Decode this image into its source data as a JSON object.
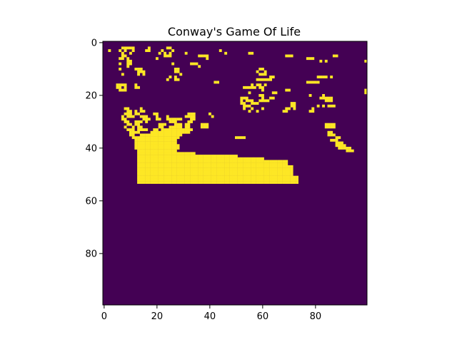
{
  "chart_data": {
    "type": "heatmap",
    "title": "Conway's Game Of Life",
    "xlabel": "",
    "ylabel": "",
    "grid": false,
    "colormap": "viridis",
    "colors": {
      "dead": "#440154",
      "alive": "#fde725"
    },
    "rows": 100,
    "cols": 100,
    "xlim": [
      -0.5,
      99.5
    ],
    "ylim": [
      99.5,
      -0.5
    ],
    "x_ticks": [
      0,
      20,
      40,
      60,
      80
    ],
    "y_ticks": [
      0,
      20,
      40,
      60,
      80
    ],
    "alive_cells_by_row": {
      "2": [
        7,
        8,
        9,
        10,
        11,
        17,
        24,
        25
      ],
      "3": [
        2,
        6,
        8,
        11,
        16,
        17,
        22,
        26,
        44
      ],
      "4": [
        7,
        10,
        21,
        23,
        25,
        31,
        46,
        55,
        56
      ],
      "5": [
        7,
        8,
        23,
        24,
        25,
        36,
        37,
        37,
        38,
        39,
        69,
        70,
        71,
        87,
        88
      ],
      "6": [
        6,
        7,
        9,
        20,
        39,
        77,
        78,
        79
      ],
      "7": [
        9,
        10,
        82,
        84,
        99
      ],
      "8": [
        6,
        9,
        10,
        26,
        33,
        34,
        34,
        35
      ],
      "9": [
        9,
        36,
        36
      ],
      "10": [
        6,
        12,
        13,
        14,
        27,
        28,
        59,
        60
      ],
      "11": [
        13,
        14,
        15,
        27,
        28,
        58,
        61
      ],
      "12": [
        7,
        13,
        15,
        29,
        59,
        60,
        61
      ],
      "13": [
        25,
        27,
        63,
        64,
        81,
        82,
        83,
        84,
        86
      ],
      "14": [
        24,
        27,
        28,
        58,
        59,
        60,
        61,
        62,
        63
      ],
      "15": [
        42,
        43,
        77,
        78,
        79,
        80,
        81
      ],
      "16": [
        5,
        6,
        7,
        8,
        12,
        56,
        58,
        59,
        61
      ],
      "17": [
        5,
        6,
        8,
        12,
        13,
        53,
        54,
        55,
        56,
        57,
        59,
        60
      ],
      "18": [
        6,
        7,
        8,
        60,
        69,
        70,
        99
      ],
      "19": [
        55,
        64,
        65,
        99
      ],
      "20": [
        59,
        60,
        78,
        83
      ],
      "21": [
        52,
        53,
        54,
        60,
        63,
        64,
        82,
        83,
        84,
        85,
        86
      ],
      "22": [
        52,
        54,
        55,
        56,
        59,
        60,
        61,
        62,
        84,
        85,
        86
      ],
      "23": [
        52,
        53,
        56,
        57,
        58,
        71,
        72
      ],
      "24": [
        53,
        54,
        55,
        71,
        72,
        81,
        83,
        85,
        86,
        87
      ],
      "25": [
        8,
        9,
        14,
        53,
        56,
        60,
        69,
        70,
        72,
        79
      ],
      "26": [
        9,
        10,
        12,
        14,
        15,
        55,
        58,
        68,
        69,
        78,
        79
      ],
      "27": [
        8,
        9,
        10,
        12,
        13,
        19,
        20,
        32,
        33,
        34,
        34,
        40
      ],
      "28": [
        7,
        9,
        10,
        11,
        14,
        15,
        16,
        20,
        24,
        31,
        32,
        33,
        34,
        41
      ],
      "29": [
        7,
        8,
        15,
        16,
        17,
        20,
        21,
        24,
        25,
        26,
        27,
        28,
        29,
        33,
        34
      ],
      "30": [
        8,
        9,
        12,
        13,
        14,
        16,
        25,
        26,
        27,
        32,
        33
      ],
      "31": [
        9,
        10,
        12,
        13,
        21,
        22,
        23,
        27,
        28,
        29,
        31,
        32,
        37,
        38,
        39,
        84,
        85,
        86,
        87
      ],
      "32": [
        8,
        11,
        13,
        14,
        21,
        22,
        25,
        26,
        27,
        28,
        29,
        31,
        32,
        37,
        38,
        39,
        84,
        85,
        86,
        87
      ],
      "33": [
        9,
        10,
        11,
        13,
        14,
        15,
        16,
        19,
        20,
        22,
        23,
        24,
        25,
        26,
        27,
        28,
        29,
        30,
        31,
        32,
        33
      ],
      "34": [
        10,
        11,
        12,
        13,
        18,
        19,
        20,
        21,
        22,
        23,
        24,
        25,
        26,
        27,
        28,
        29,
        30,
        31,
        32,
        85,
        86
      ],
      "35": [
        10,
        11,
        14,
        15,
        16,
        17,
        18,
        19,
        20,
        21,
        22,
        23,
        24,
        25,
        26,
        27,
        28,
        29,
        85,
        86,
        87
      ],
      "36": [
        11,
        12,
        13,
        14,
        15,
        16,
        17,
        18,
        19,
        20,
        21,
        22,
        23,
        24,
        25,
        26,
        27,
        28,
        50,
        51,
        52,
        53,
        88,
        89
      ],
      "37": [
        12,
        13,
        14,
        15,
        16,
        17,
        18,
        19,
        20,
        21,
        22,
        23,
        24,
        25,
        26,
        27,
        86,
        87,
        88
      ],
      "38": [
        12,
        13,
        14,
        15,
        16,
        17,
        18,
        19,
        20,
        21,
        22,
        23,
        24,
        25,
        26,
        27,
        88,
        89,
        90
      ],
      "39": [
        12,
        13,
        14,
        15,
        16,
        17,
        18,
        19,
        20,
        21,
        22,
        23,
        24,
        25,
        26,
        27,
        28,
        88,
        89,
        90,
        91
      ],
      "40": [
        12,
        13,
        14,
        15,
        16,
        17,
        18,
        19,
        20,
        21,
        22,
        23,
        24,
        25,
        26,
        27,
        28,
        89,
        90,
        91,
        92,
        93
      ],
      "41": [
        13,
        14,
        15,
        16,
        17,
        18,
        19,
        20,
        21,
        22,
        23,
        24,
        25,
        26,
        27,
        92,
        93,
        94
      ],
      "42": [
        13,
        14,
        15,
        16,
        17,
        18,
        19,
        20,
        21,
        22,
        23,
        24,
        25,
        26,
        27,
        28,
        29,
        30,
        31,
        32,
        33,
        34
      ],
      "43": [
        13,
        14,
        15,
        16,
        17,
        18,
        19,
        20,
        21,
        22,
        23,
        24,
        25,
        26,
        27,
        28,
        29,
        30,
        31,
        32,
        33,
        34,
        35,
        36,
        37,
        38,
        39,
        40,
        41,
        42,
        43,
        44,
        45,
        46,
        47,
        48,
        49,
        50
      ],
      "44": [
        13,
        14,
        15,
        16,
        17,
        18,
        19,
        20,
        21,
        22,
        23,
        24,
        25,
        26,
        27,
        28,
        29,
        30,
        31,
        32,
        33,
        34,
        35,
        36,
        37,
        38,
        39,
        40,
        41,
        42,
        43,
        44,
        45,
        46,
        47,
        48,
        49,
        50,
        51,
        52,
        53,
        54,
        55,
        56,
        57,
        58,
        59,
        60
      ],
      "45": [
        13,
        14,
        15,
        16,
        17,
        18,
        19,
        20,
        21,
        22,
        23,
        24,
        25,
        26,
        27,
        28,
        29,
        30,
        31,
        32,
        33,
        34,
        35,
        36,
        37,
        38,
        39,
        40,
        41,
        42,
        43,
        44,
        45,
        46,
        47,
        48,
        49,
        50,
        51,
        52,
        53,
        54,
        55,
        56,
        57,
        58,
        59,
        60,
        61,
        62,
        63,
        64,
        65,
        66,
        67,
        68,
        69
      ],
      "46": [
        13,
        14,
        15,
        16,
        17,
        18,
        19,
        20,
        21,
        22,
        23,
        24,
        25,
        26,
        27,
        28,
        29,
        30,
        31,
        32,
        33,
        34,
        35,
        36,
        37,
        38,
        39,
        40,
        41,
        42,
        43,
        44,
        45,
        46,
        47,
        48,
        49,
        50,
        51,
        52,
        53,
        54,
        55,
        56,
        57,
        58,
        59,
        60,
        61,
        62,
        63,
        64,
        65,
        66,
        67,
        68,
        69
      ],
      "47": [
        13,
        14,
        15,
        16,
        17,
        18,
        19,
        20,
        21,
        22,
        23,
        24,
        25,
        26,
        27,
        28,
        29,
        30,
        31,
        32,
        33,
        34,
        35,
        36,
        37,
        38,
        39,
        40,
        41,
        42,
        43,
        44,
        45,
        46,
        47,
        48,
        49,
        50,
        51,
        52,
        53,
        54,
        55,
        56,
        57,
        58,
        59,
        60,
        61,
        62,
        63,
        64,
        65,
        66,
        67,
        68,
        69,
        70,
        71
      ],
      "48": [
        13,
        14,
        15,
        16,
        17,
        18,
        19,
        20,
        21,
        22,
        23,
        24,
        25,
        26,
        27,
        28,
        29,
        30,
        31,
        32,
        33,
        34,
        35,
        36,
        37,
        38,
        39,
        40,
        41,
        42,
        43,
        44,
        45,
        46,
        47,
        48,
        49,
        50,
        51,
        52,
        53,
        54,
        55,
        56,
        57,
        58,
        59,
        60,
        61,
        62,
        63,
        64,
        65,
        66,
        67,
        68,
        69,
        70,
        71
      ],
      "49": [
        13,
        14,
        15,
        16,
        17,
        18,
        19,
        20,
        21,
        22,
        23,
        24,
        25,
        26,
        27,
        28,
        29,
        30,
        31,
        32,
        33,
        34,
        35,
        36,
        37,
        38,
        39,
        40,
        41,
        42,
        43,
        44,
        45,
        46,
        47,
        48,
        49,
        50,
        51,
        52,
        53,
        54,
        55,
        56,
        57,
        58,
        59,
        60,
        61,
        62,
        63,
        64,
        65,
        66,
        67,
        68,
        69,
        70,
        71
      ],
      "50": [
        13,
        14,
        15,
        16,
        17,
        18,
        19,
        20,
        21,
        22,
        23,
        24,
        25,
        26,
        27,
        28,
        29,
        30,
        31,
        32,
        33,
        34,
        35,
        36,
        37,
        38,
        39,
        40,
        41,
        42,
        43,
        44,
        45,
        46,
        47,
        48,
        49,
        50,
        51,
        52,
        53,
        54,
        55,
        56,
        57,
        58,
        59,
        60,
        61,
        62,
        63,
        64,
        65,
        66,
        67,
        68,
        69,
        70,
        71
      ],
      "51": [
        13,
        14,
        15,
        16,
        17,
        18,
        19,
        20,
        21,
        22,
        23,
        24,
        25,
        26,
        27,
        28,
        29,
        30,
        31,
        32,
        33,
        34,
        35,
        36,
        37,
        38,
        39,
        40,
        41,
        42,
        43,
        44,
        45,
        46,
        47,
        48,
        49,
        50,
        51,
        52,
        53,
        54,
        55,
        56,
        57,
        58,
        59,
        60,
        61,
        62,
        63,
        64,
        65,
        66,
        67,
        68,
        69,
        70,
        71,
        72,
        73
      ],
      "52": [
        13,
        14,
        15,
        16,
        17,
        18,
        19,
        20,
        21,
        22,
        23,
        24,
        25,
        26,
        27,
        28,
        29,
        30,
        31,
        32,
        33,
        34,
        35,
        36,
        37,
        38,
        39,
        40,
        41,
        42,
        43,
        44,
        45,
        46,
        47,
        48,
        49,
        50,
        51,
        52,
        53,
        54,
        55,
        56,
        57,
        58,
        59,
        60,
        61,
        62,
        63,
        64,
        65,
        66,
        67,
        68,
        69,
        70,
        71,
        72,
        73
      ],
      "53": [
        13,
        14,
        15,
        16,
        17,
        18,
        19,
        20,
        21,
        22,
        23,
        24,
        25,
        26,
        27,
        28,
        29,
        30,
        31,
        32,
        33,
        34,
        35,
        36,
        37,
        38,
        39,
        40,
        41,
        42,
        43,
        44,
        45,
        46,
        47,
        48,
        49,
        50,
        51,
        52,
        53,
        54,
        55,
        56,
        57,
        58,
        59,
        60,
        61,
        62,
        63,
        64,
        65,
        66,
        67,
        68,
        69,
        70,
        71,
        72,
        73
      ]
    }
  }
}
